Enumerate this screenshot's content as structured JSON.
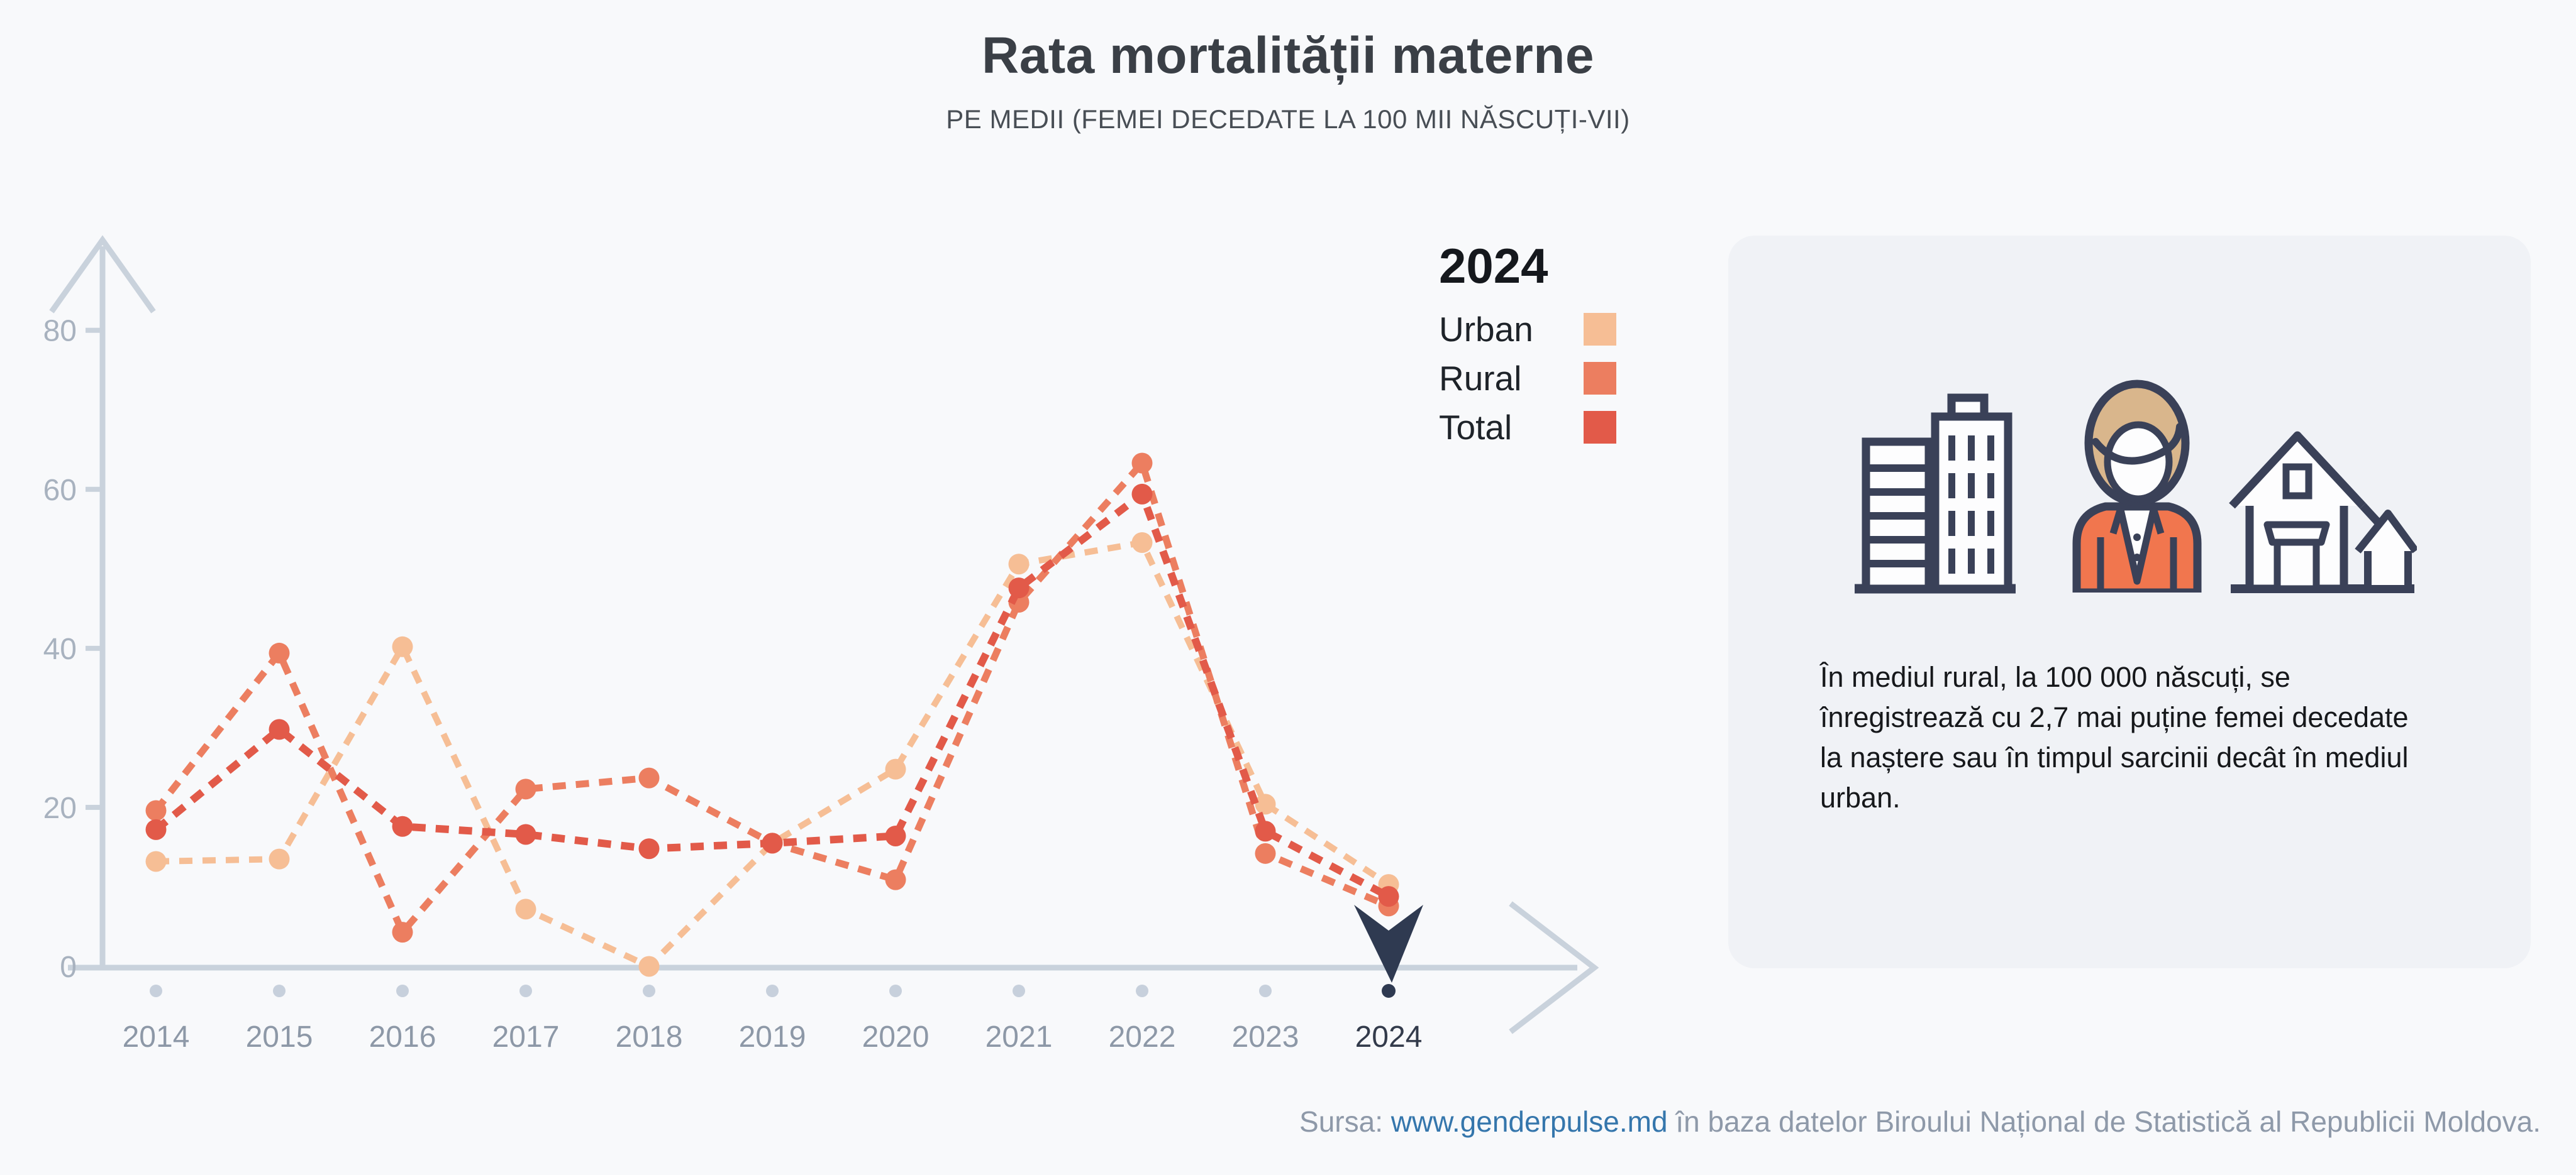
{
  "title": "Rata mortalității materne",
  "subtitle": "PE MEDII (FEMEI DECEDATE LA 100 MII NĂSCUȚI-VII)",
  "legend": {
    "year": "2024",
    "items": [
      {
        "label": "Urban",
        "color": "#F6BE95"
      },
      {
        "label": "Rural",
        "color": "#EC7E60"
      },
      {
        "label": "Total",
        "color": "#E25A49"
      }
    ]
  },
  "chart_data": {
    "type": "line",
    "line_style": "dashed",
    "grid": false,
    "x": [
      "2014",
      "2015",
      "2016",
      "2017",
      "2018",
      "2019",
      "2020",
      "2021",
      "2022",
      "2023",
      "2024"
    ],
    "series": [
      {
        "name": "Urban",
        "color": "#F6BE95",
        "values": [
          13.2,
          13.5,
          40.2,
          7.2,
          0,
          15.5,
          24.8,
          50.6,
          53.3,
          20.4,
          10.3
        ]
      },
      {
        "name": "Rural",
        "color": "#EC7E60",
        "values": [
          19.6,
          39.4,
          4.3,
          22.3,
          23.7,
          15.5,
          10.9,
          45.8,
          63.3,
          14.2,
          7.6
        ]
      },
      {
        "name": "Total",
        "color": "#E25A49",
        "values": [
          17.2,
          29.8,
          17.6,
          16.6,
          14.8,
          15.5,
          16.4,
          47.6,
          59.4,
          17.0,
          8.8
        ]
      }
    ],
    "yticks": [
      0,
      20,
      40,
      60,
      80
    ],
    "ylim": [
      0,
      88
    ],
    "highlight_year": "2024",
    "legend_position": "top-right"
  },
  "panel": {
    "text": "În mediul rural, la 100 000 născuți, se înregistrează cu 2,7 mai puține femei decedate la naștere sau în timpul sarcinii decât în mediul urban.",
    "icons": [
      "city-buildings-icon",
      "woman-icon",
      "village-houses-icon"
    ]
  },
  "footer": {
    "prefix": "Sursa: ",
    "link": "www.genderpulse.md",
    "suffix": " în baza datelor Biroului Național de Statistică al Republicii Moldova."
  },
  "colors": {
    "page_bg": "#F8F9FB",
    "panel_bg": "#F0F2F6",
    "axis": "#C9D2DC",
    "tick_label": "#A8B2BF",
    "year_label": "#8D98A7",
    "year_highlight": "#333B4B",
    "dot": "#C7D0DC",
    "marker": "#2F3A51",
    "title": "#3A3F46",
    "subtitle": "#484E55",
    "text": "#16181B",
    "legend_text": "#1E2329",
    "footer": "#8E99A9",
    "link": "#3576AC",
    "icon_navy": "#3A4158",
    "icon_hair": "#D9B68C",
    "icon_jacket": "#F1764E"
  }
}
